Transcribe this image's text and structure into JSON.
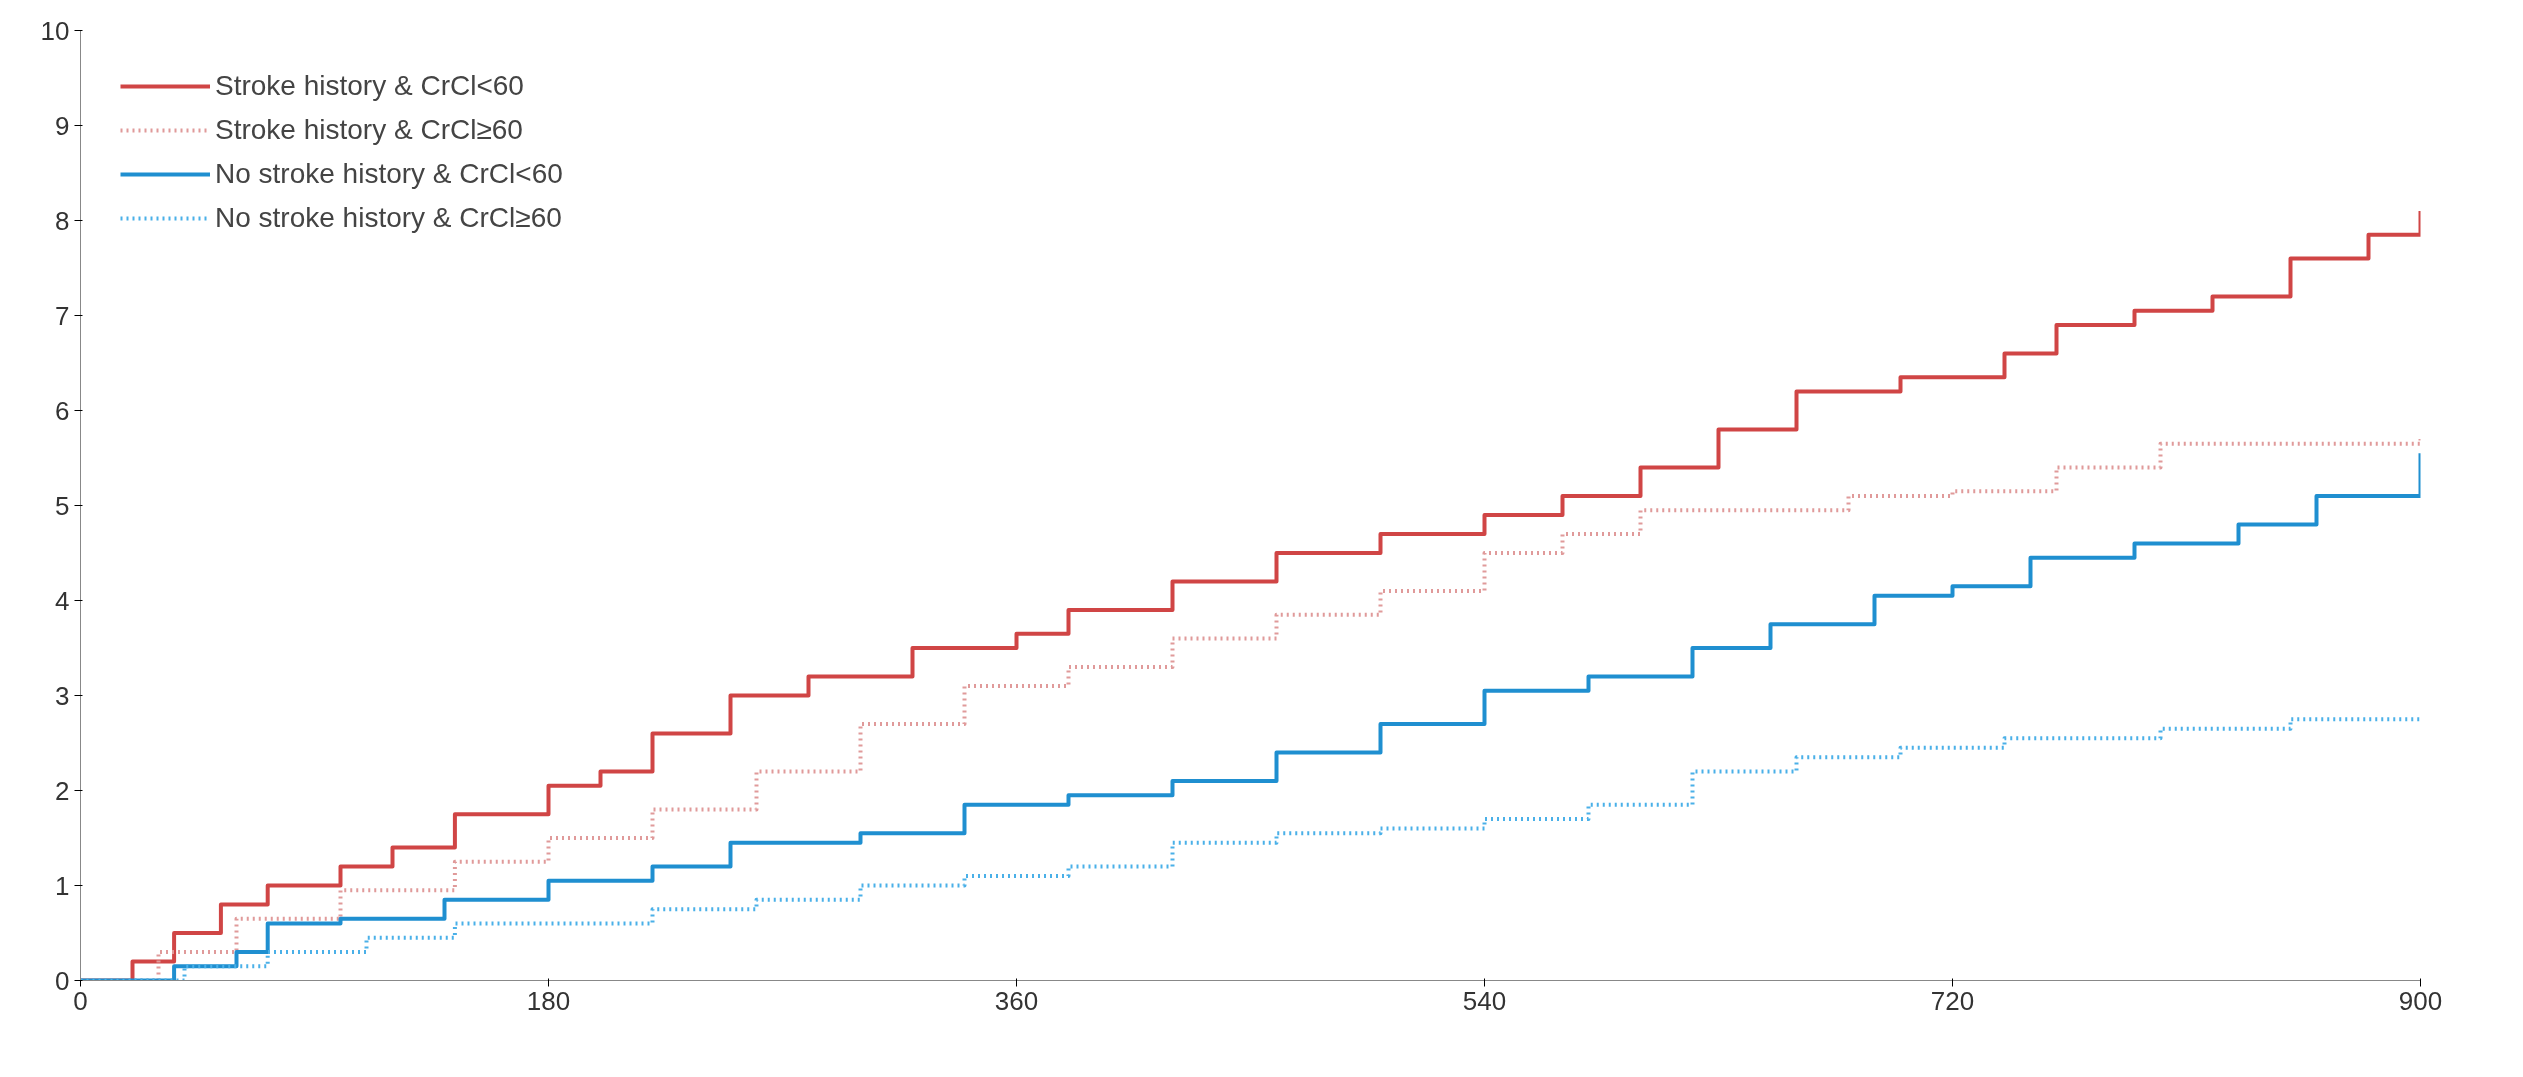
{
  "chart_data": {
    "type": "step",
    "xlim": [
      0,
      900
    ],
    "ylim": [
      0,
      10
    ],
    "xticks": [
      0,
      180,
      360,
      540,
      720,
      900
    ],
    "yticks": [
      0,
      1,
      2,
      3,
      4,
      5,
      6,
      7,
      8,
      9,
      10
    ],
    "grid": false,
    "legend": "top left",
    "series": [
      {
        "name": "Stroke history & CrCl<60",
        "color": "#d04545",
        "line_style": "solid",
        "x": [
          0,
          20,
          36,
          54,
          72,
          100,
          120,
          144,
          180,
          200,
          220,
          250,
          280,
          320,
          360,
          380,
          420,
          460,
          500,
          540,
          570,
          600,
          630,
          660,
          700,
          740,
          760,
          790,
          820,
          850,
          880,
          900
        ],
        "values": [
          0,
          0.2,
          0.5,
          0.8,
          1.0,
          1.2,
          1.4,
          1.75,
          2.05,
          2.2,
          2.6,
          3.0,
          3.2,
          3.5,
          3.65,
          3.9,
          4.2,
          4.5,
          4.7,
          4.9,
          5.1,
          5.4,
          5.8,
          6.2,
          6.35,
          6.6,
          6.9,
          7.05,
          7.2,
          7.6,
          7.85,
          8.1
        ]
      },
      {
        "name": "Stroke history & CrCl≥60",
        "color": "#e09a9a",
        "line_style": "dotted",
        "x": [
          0,
          30,
          60,
          100,
          144,
          180,
          220,
          260,
          300,
          340,
          380,
          420,
          460,
          500,
          540,
          570,
          600,
          640,
          680,
          720,
          760,
          800,
          850,
          900
        ],
        "values": [
          0,
          0.3,
          0.65,
          0.95,
          1.25,
          1.5,
          1.8,
          2.2,
          2.7,
          3.1,
          3.3,
          3.6,
          3.85,
          4.1,
          4.5,
          4.7,
          4.95,
          4.95,
          5.1,
          5.15,
          5.4,
          5.65,
          5.65,
          5.7
        ]
      },
      {
        "name": "No stroke history & CrCl<60",
        "color": "#1f8fd0",
        "line_style": "solid",
        "x": [
          0,
          36,
          60,
          72,
          100,
          140,
          180,
          220,
          250,
          300,
          340,
          380,
          420,
          460,
          500,
          540,
          580,
          620,
          650,
          690,
          720,
          750,
          790,
          830,
          860,
          900
        ],
        "values": [
          0,
          0.15,
          0.3,
          0.6,
          0.65,
          0.85,
          1.05,
          1.2,
          1.45,
          1.55,
          1.85,
          1.95,
          2.1,
          2.4,
          2.7,
          3.05,
          3.2,
          3.5,
          3.75,
          4.05,
          4.15,
          4.45,
          4.6,
          4.8,
          5.1,
          5.55
        ]
      },
      {
        "name": "No stroke history & CrCl≥60",
        "color": "#4ab0e8",
        "line_style": "dotted",
        "x": [
          0,
          40,
          72,
          110,
          144,
          180,
          220,
          260,
          300,
          340,
          380,
          420,
          460,
          500,
          540,
          580,
          620,
          660,
          700,
          740,
          800,
          850,
          900
        ],
        "values": [
          0,
          0.15,
          0.3,
          0.45,
          0.6,
          0.6,
          0.75,
          0.85,
          1.0,
          1.1,
          1.2,
          1.45,
          1.55,
          1.6,
          1.7,
          1.85,
          2.2,
          2.35,
          2.45,
          2.55,
          2.65,
          2.75,
          2.75
        ]
      }
    ]
  }
}
